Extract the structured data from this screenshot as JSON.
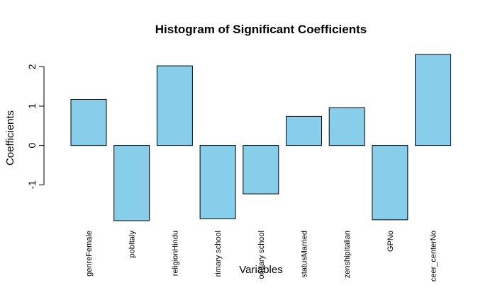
{
  "chart_data": {
    "type": "bar",
    "title": "Histogram of Significant Coefficients",
    "xlabel": "Variables",
    "ylabel": "Coefficients",
    "categories": [
      "genreFemale",
      "pobItaly",
      "religionHindu",
      "rimary school",
      "ondary school",
      "statusMarried",
      "zenshipItalian",
      "GPNo",
      "ceer_centerNo"
    ],
    "values": [
      1.17,
      -1.91,
      2.02,
      -1.86,
      -1.23,
      0.74,
      0.96,
      -1.89,
      2.31
    ],
    "ylim": [
      -1.91,
      2.31
    ],
    "yticks": [
      -1,
      0,
      1,
      2
    ],
    "grid": false,
    "legend": "none",
    "bar_color": "#87CEEB",
    "bar_border_color": "#000000"
  }
}
